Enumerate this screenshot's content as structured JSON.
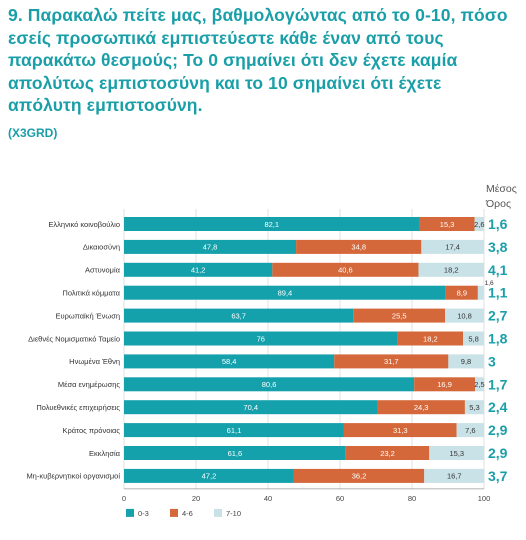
{
  "title": "9. Παρακαλώ πείτε μας, βαθμολογώντας από το 0-10, πόσο εσείς προσωπικά εμπιστεύεστε κάθε έναν από τους παρακάτω θεσμούς; Το 0 σημαίνει ότι δεν έχετε καμία απολύτως εμπιστοσύνη και το 10 σημαίνει ότι έχετε απόλυτη εμπιστοσύνη.",
  "code": "(X3GRD)",
  "mean_header": "Μέσος Όρος",
  "colors": {
    "title": "#1a9fa8",
    "series_0_3": "#14a1ac",
    "series_4_6": "#d5683a",
    "series_7_10": "#c9e2e7",
    "mean": "#1a9fa8"
  },
  "chart_data": {
    "type": "bar",
    "orientation": "horizontal",
    "stacked": true,
    "categories": [
      "Ελληνικό κοινοβούλιο",
      "Δικαιοσύνη",
      "Αστυνομία",
      "Πολιτικά κόμματα",
      "Ευρωπαϊκή Ένωση",
      "Διεθνές Νομισματικό Ταμείο",
      "Ηνωμένα Έθνη",
      "Μέσα ενημέρωσης",
      "Πολυεθνικές επιχειρήσεις",
      "Κράτος πρόνοιας",
      "Εκκλησία",
      "Μη-κυβερνητικοί οργανισμοί"
    ],
    "series": [
      {
        "name": "0-3",
        "values": [
          82.1,
          47.8,
          41.2,
          89.4,
          63.7,
          76,
          58.4,
          80.6,
          70.4,
          61.1,
          61.6,
          47.2
        ],
        "labels": [
          "82,1",
          "47,8",
          "41,2",
          "89,4",
          "63,7",
          "76",
          "58,4",
          "80,6",
          "70,4",
          "61,1",
          "61,6",
          "47,2"
        ]
      },
      {
        "name": "4-6",
        "values": [
          15.3,
          34.8,
          40.6,
          8.9,
          25.5,
          18.2,
          31.7,
          16.9,
          24.3,
          31.3,
          23.2,
          36.2
        ],
        "labels": [
          "15,3",
          "34,8",
          "40,6",
          "8,9",
          "25,5",
          "18,2",
          "31,7",
          "16,9",
          "24,3",
          "31,3",
          "23,2",
          "36,2"
        ]
      },
      {
        "name": "7-10",
        "values": [
          2.6,
          17.4,
          18.2,
          1.6,
          10.8,
          5.8,
          9.8,
          2.5,
          5.3,
          7.6,
          15.3,
          16.7
        ],
        "labels": [
          "2,6",
          "17,4",
          "18,2",
          "1,6",
          "10,8",
          "5,8",
          "9,8",
          "2,5",
          "5,3",
          "7,6",
          "15,3",
          "16,7"
        ]
      }
    ],
    "means": [
      "1,6",
      "3,8",
      "4,1",
      "1,1",
      "2,7",
      "1,8",
      "3",
      "1,7",
      "2,4",
      "2,9",
      "2,9",
      "3,7"
    ],
    "xlim": [
      0,
      100
    ],
    "xticks": [
      0,
      20,
      40,
      60,
      80,
      100
    ],
    "grid": true,
    "legend_position": "bottom-left"
  }
}
